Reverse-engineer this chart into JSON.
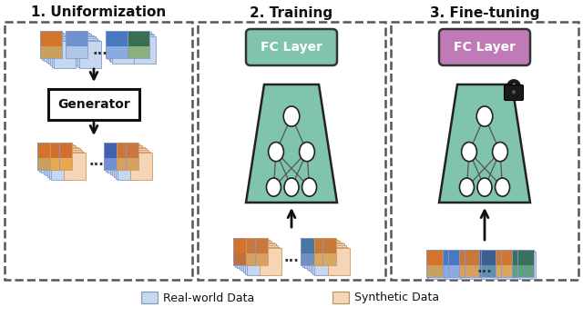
{
  "title1": "1. Uniformization",
  "title2": "2. Training",
  "title3": "3. Fine-tuning",
  "fc_layer_text": "FC Layer",
  "generator_text": "Generator",
  "legend_real": "Real-world Data",
  "legend_synthetic": "Synthetic Data",
  "bg_color": "#ffffff",
  "fc_green_color": "#80c4ad",
  "fc_purple_color": "#c07ab8",
  "node_color": "#ffffff",
  "real_data_color": "#c5d8f0",
  "synthetic_data_color": "#f5d5b5",
  "panel_border_color": "#555555",
  "arrow_color": "#111111",
  "nn_edge_color": "#222222",
  "generator_edge_color": "#111111"
}
